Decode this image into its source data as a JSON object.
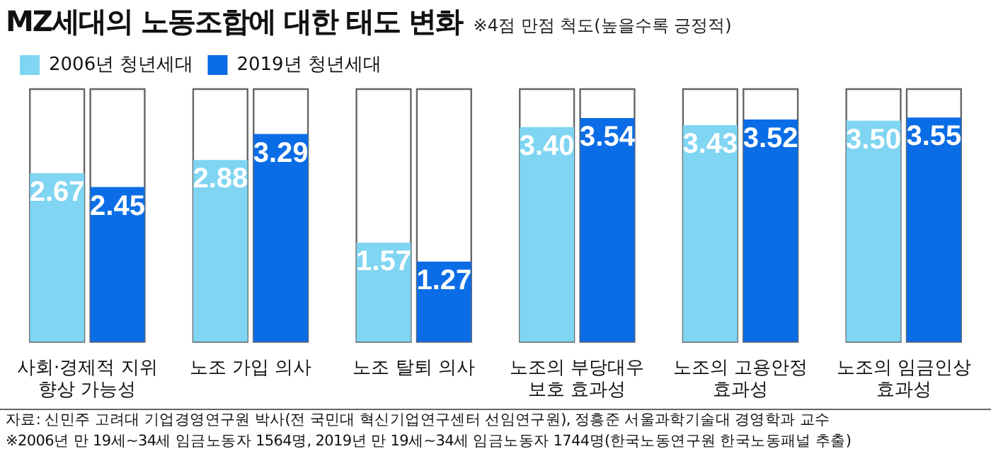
{
  "chart_data": {
    "type": "bar",
    "title": "MZ세대의 노동조합에 대한 태도 변화",
    "subtitle": "※4점 만점 척도(높을수록 긍정적)",
    "categories": [
      "사회·경제적 지위 향상 가능성",
      "노조 가입 의사",
      "노조 탈퇴 의사",
      "노조의 부당대우 보호 효과성",
      "노조의 고용안정 효과성",
      "노조의 임금인상 효과성"
    ],
    "series": [
      {
        "name": "2006년 청년세대",
        "color": "#7fd5f2",
        "values": [
          2.67,
          2.88,
          1.57,
          3.4,
          3.43,
          3.5
        ],
        "value_labels": [
          "2.67",
          "2.88",
          "1.57",
          "3.40",
          "3.43",
          "3.50"
        ]
      },
      {
        "name": "2019년 청년세대",
        "color": "#0b6de6",
        "values": [
          2.45,
          3.29,
          1.27,
          3.54,
          3.52,
          3.55
        ],
        "value_labels": [
          "2.45",
          "3.29",
          "1.27",
          "3.54",
          "3.52",
          "3.55"
        ]
      }
    ],
    "ylim": [
      0,
      4
    ],
    "tick_labels": "x",
    "grid": false,
    "legend": "top left",
    "annotations": [
      "자료: 신민주 고려대 기업경영연구원 박사(전 국민대 혁신기업연구센터 선임연구원), 정흥준 서울과학기술대 경영학과 교수",
      "※2006년 만 19세~34세 임금노동자 1564명, 2019년 만 19세~34세 임금노동자 1744명(한국노동연구원 한국노동패널 추출)"
    ]
  }
}
